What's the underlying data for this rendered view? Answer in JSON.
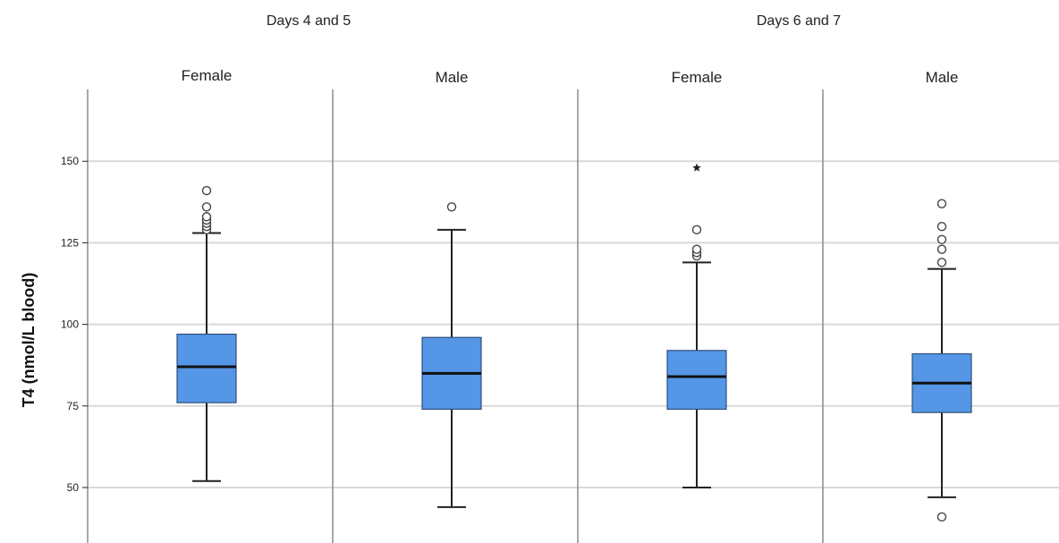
{
  "chart_data": {
    "type": "boxplot",
    "ylabel": "T4 (nmol/L blood)",
    "ylim": [
      33,
      172
    ],
    "yticks": [
      50,
      75,
      100,
      125,
      150
    ],
    "grid": true,
    "groups": [
      {
        "label": "Days 4 and 5",
        "panels": [
          {
            "label": "Female",
            "whisker_low": 52,
            "q1": 76,
            "median": 87,
            "q3": 97,
            "whisker_high": 128,
            "outliers": [
              129,
              130,
              131,
              132,
              133,
              136,
              141
            ],
            "extremes": []
          },
          {
            "label": "Male",
            "whisker_low": 44,
            "q1": 74,
            "median": 85,
            "q3": 96,
            "whisker_high": 129,
            "outliers": [
              136
            ],
            "extremes": []
          }
        ]
      },
      {
        "label": "Days 6 and 7",
        "panels": [
          {
            "label": "Female",
            "whisker_low": 50,
            "q1": 74,
            "median": 84,
            "q3": 92,
            "whisker_high": 119,
            "outliers": [
              121,
              122,
              123,
              129
            ],
            "extremes": [
              148
            ]
          },
          {
            "label": "Male",
            "whisker_low": 47,
            "q1": 73,
            "median": 82,
            "q3": 91,
            "whisker_high": 117,
            "outliers": [
              41,
              119,
              123,
              126,
              130,
              137
            ],
            "extremes": []
          }
        ]
      }
    ],
    "colors": {
      "box_fill": "#5596e6",
      "box_stroke": "#2f4f7a",
      "median": "#111111",
      "whisker": "#222222",
      "grid": "#d9d9d9",
      "panel_border": "#8c8c8c"
    }
  }
}
